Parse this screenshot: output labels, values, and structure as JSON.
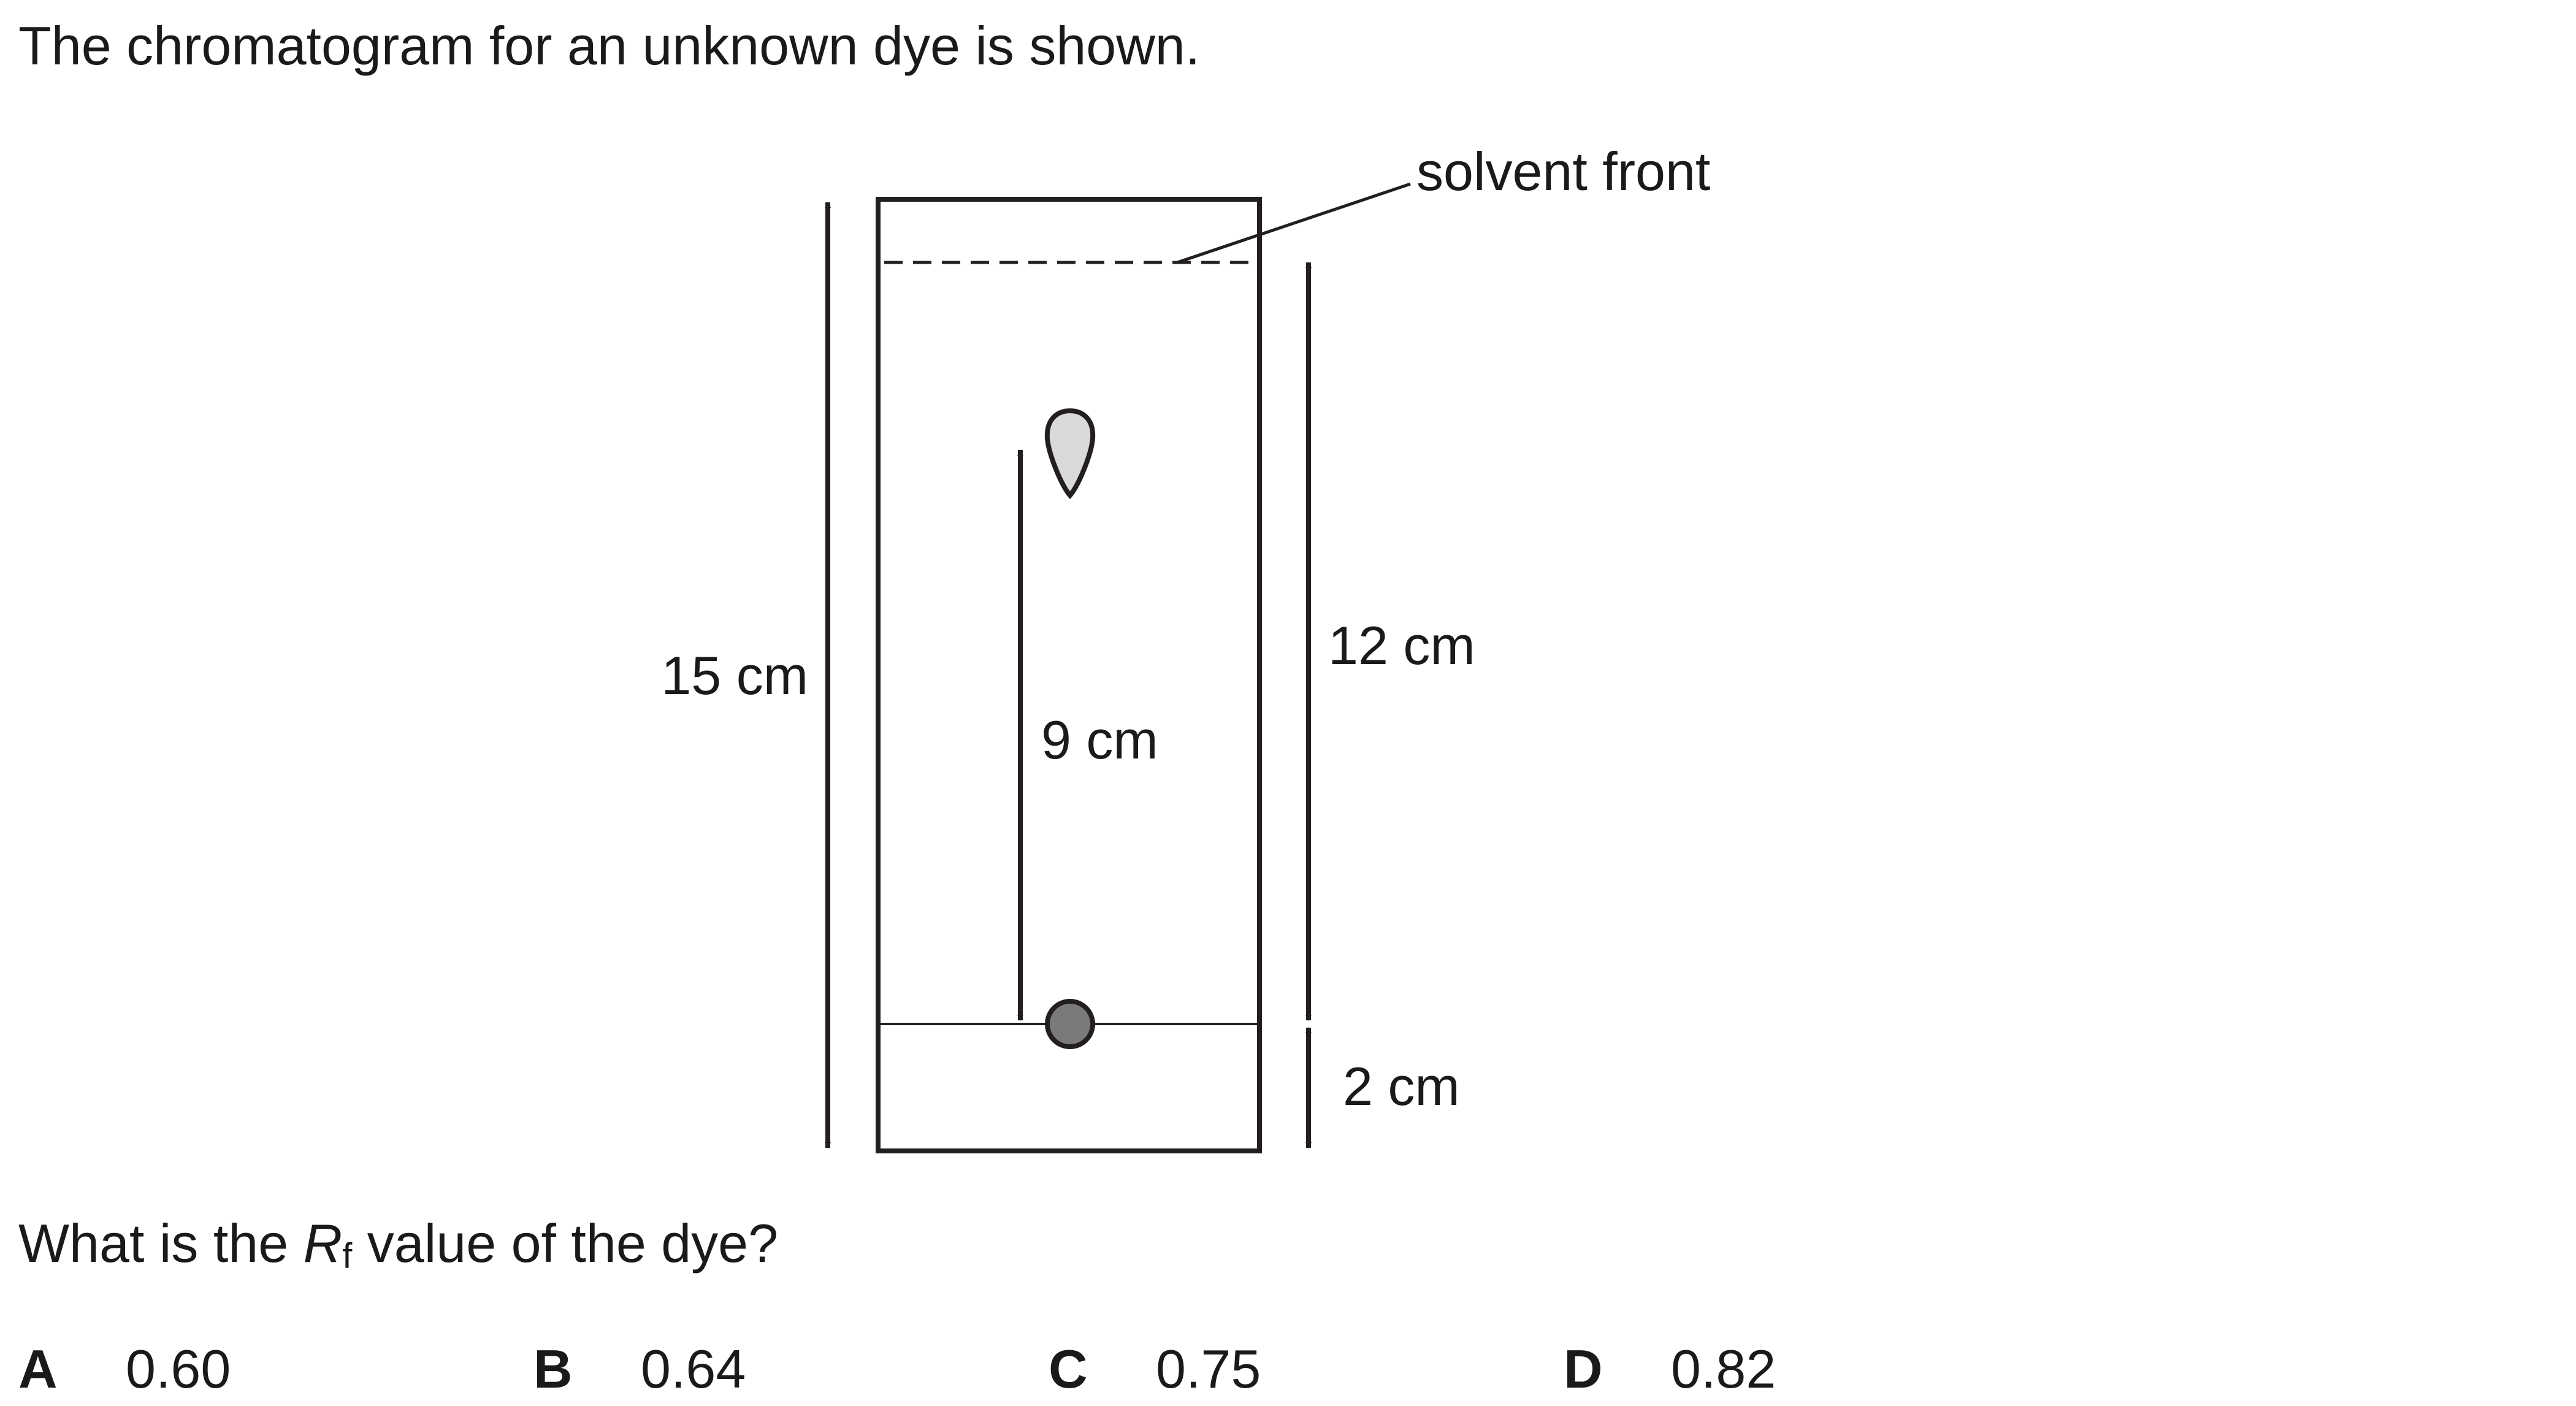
{
  "intro_text": "The chromatogram for an unknown dye is shown.",
  "diagram": {
    "solvent_front_label": "solvent front",
    "paper_height_label": "15 cm",
    "spot_distance_label": "9 cm",
    "solvent_distance_label": "12 cm",
    "baseline_label": "2 cm",
    "colors": {
      "outline": "#231f20",
      "spot_fill": "#d9d9d9",
      "origin_fill": "#7a7a7a"
    }
  },
  "question": {
    "prefix": "What is the ",
    "symbol": "R",
    "subscript": "f",
    "suffix": " value of the dye?"
  },
  "options": [
    {
      "letter": "A",
      "value": "0.60"
    },
    {
      "letter": "B",
      "value": "0.64"
    },
    {
      "letter": "C",
      "value": "0.75"
    },
    {
      "letter": "D",
      "value": "0.82"
    }
  ]
}
